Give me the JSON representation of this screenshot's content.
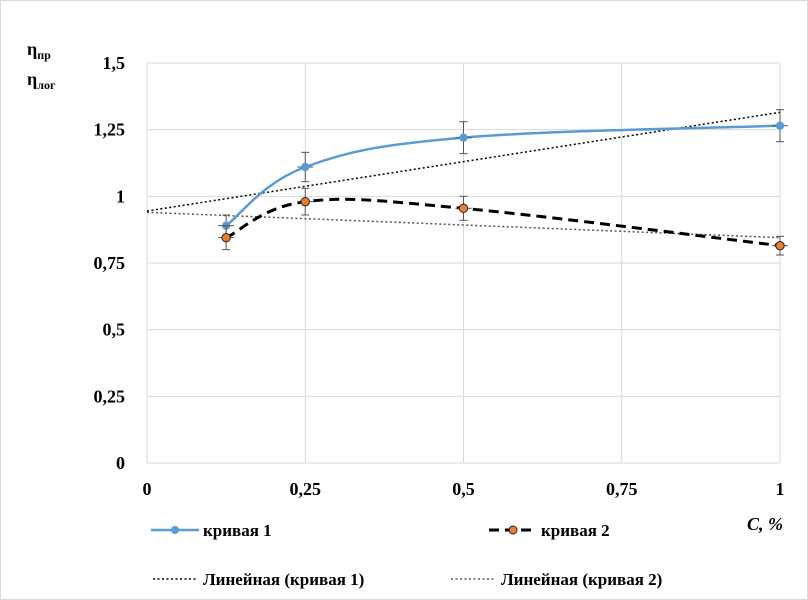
{
  "chart_data": {
    "type": "line",
    "ylabel_lines": [
      {
        "main": "η",
        "sub": "пр"
      },
      {
        "main": "η",
        "sub": "лог"
      }
    ],
    "xlabel": "C, %",
    "xlim": [
      0,
      1
    ],
    "ylim": [
      0,
      1.5
    ],
    "x_ticks": [
      0,
      0.25,
      0.5,
      0.75,
      1
    ],
    "x_tick_labels": [
      "0",
      "0,25",
      "0,5",
      "0,75",
      "1"
    ],
    "y_ticks": [
      0,
      0.25,
      0.5,
      0.75,
      1,
      1.25,
      1.5
    ],
    "y_tick_labels": [
      "0",
      "0,25",
      "0,5",
      "0,75",
      "1",
      "1,25",
      "1,5"
    ],
    "grid": true,
    "legend_position": "bottom",
    "series": [
      {
        "name": "кривая 1",
        "style": "smooth-solid",
        "color": "#5b9bd5",
        "x": [
          0.125,
          0.25,
          0.5,
          1
        ],
        "y": [
          0.89,
          1.11,
          1.22,
          1.265
        ],
        "yerr": [
          0.04,
          0.055,
          0.06,
          0.06
        ]
      },
      {
        "name": "кривая 2",
        "style": "smooth-dashed",
        "color": "#000000",
        "marker_color": "#ed7d31",
        "x": [
          0.125,
          0.25,
          0.5,
          1
        ],
        "y": [
          0.845,
          0.98,
          0.955,
          0.815
        ],
        "yerr": [
          0.045,
          0.05,
          0.045,
          0.035
        ]
      }
    ],
    "trendlines": [
      {
        "name": "Линейная (кривая 1)",
        "type": "linear",
        "x": [
          0,
          1
        ],
        "y": [
          0.945,
          1.315
        ],
        "style": "dotted",
        "color": "#000000"
      },
      {
        "name": "Линейная (кривая 2)",
        "type": "linear",
        "x": [
          0,
          1
        ],
        "y": [
          0.94,
          0.845
        ],
        "style": "dotted",
        "color": "#555555"
      }
    ]
  }
}
